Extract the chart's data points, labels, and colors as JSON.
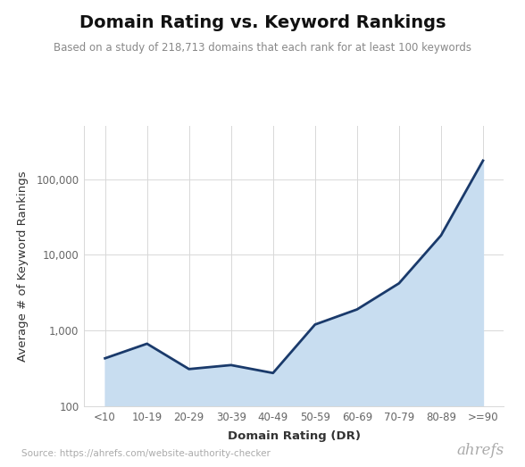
{
  "title": "Domain Rating vs. Keyword Rankings",
  "subtitle": "Based on a study of 218,713 domains that each rank for at least 100 keywords",
  "xlabel": "Domain Rating (DR)",
  "ylabel": "Average # of Keyword Rankings",
  "source": "Source: https://ahrefs.com/website-authority-checker",
  "branding": "ahrefs",
  "categories": [
    "<10",
    "10-19",
    "20-29",
    "30-39",
    "40-49",
    "50-59",
    "60-69",
    "70-79",
    "80-89",
    ">=90"
  ],
  "values": [
    430,
    670,
    310,
    350,
    275,
    1200,
    1900,
    4200,
    18000,
    175000
  ],
  "line_color": "#1a3a6b",
  "fill_color": "#c8ddf0",
  "background_color": "#ffffff",
  "grid_color": "#d8d8d8",
  "ylim_min": 100,
  "ylim_max": 500000,
  "title_fontsize": 14,
  "subtitle_fontsize": 8.5,
  "axis_label_fontsize": 9.5,
  "tick_fontsize": 8.5,
  "source_fontsize": 7.5,
  "branding_fontsize": 12
}
